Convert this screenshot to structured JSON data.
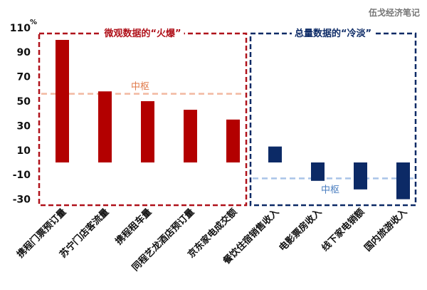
{
  "watermark": "伍戈经济笔记",
  "chart_data": {
    "type": "bar",
    "title": "",
    "ylabel": "",
    "yunit": "%",
    "ylim": [
      -35,
      112
    ],
    "yticks": [
      "110",
      "90",
      "70",
      "50",
      "30",
      "10",
      "-10",
      "-30"
    ],
    "ytick_values": [
      110,
      90,
      70,
      50,
      30,
      10,
      -10,
      -30
    ],
    "groups": [
      {
        "title": "微观数据的“火爆”",
        "color": "#b30000",
        "border_color": "#b0121b",
        "title_color": "#b0121b",
        "pivot_label": "中枢",
        "pivot_value": 56,
        "pivot_color": "#f2b8a0",
        "pivot_label_color": "#e07a4a",
        "categories": [
          "携程门票预订量",
          "苏宁门店客流量",
          "携程租车量",
          "同程艺龙酒店预订量",
          "京东家电成交额"
        ],
        "values": [
          100,
          58,
          50,
          43,
          35
        ]
      },
      {
        "title": "总量数据的“冷淡”",
        "color": "#0c2a66",
        "border_color": "#0c2a66",
        "title_color": "#0c2a66",
        "pivot_label": "中枢",
        "pivot_value": -13,
        "pivot_color": "#a9c4e8",
        "pivot_label_color": "#4a7ec0",
        "categories": [
          "餐饮住宿销售收入",
          "电影票房收入",
          "线下家电销额",
          "国内旅游收入"
        ],
        "values": [
          13,
          -15,
          -22,
          -30
        ]
      }
    ]
  }
}
